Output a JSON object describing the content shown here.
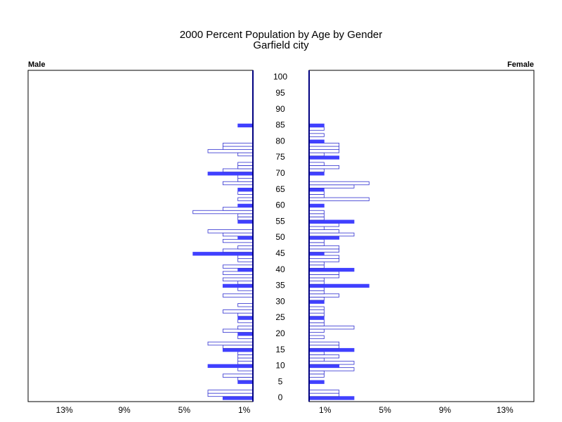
{
  "chart_data": {
    "type": "pyramid",
    "title": "2000 Percent Population by Age by Gender",
    "subtitle": "Garfield city",
    "y": [
      0,
      1,
      2,
      3,
      4,
      5,
      6,
      7,
      8,
      9,
      10,
      11,
      12,
      13,
      14,
      15,
      16,
      17,
      18,
      19,
      20,
      21,
      22,
      23,
      24,
      25,
      26,
      27,
      28,
      29,
      30,
      31,
      32,
      33,
      34,
      35,
      36,
      37,
      38,
      39,
      40,
      41,
      42,
      43,
      44,
      45,
      46,
      47,
      48,
      49,
      50,
      51,
      52,
      53,
      54,
      55,
      56,
      57,
      58,
      59,
      60,
      61,
      62,
      63,
      64,
      65,
      66,
      67,
      68,
      69,
      70,
      71,
      72,
      73,
      74,
      75,
      76,
      77,
      78,
      79,
      80,
      81,
      82,
      83,
      84,
      85,
      86,
      87,
      88,
      89,
      90,
      91,
      92,
      93,
      94,
      95,
      96,
      97,
      98,
      99,
      100
    ],
    "ylim": [
      -1.1,
      102.2
    ],
    "yticks": [
      0,
      5,
      10,
      15,
      20,
      25,
      30,
      35,
      40,
      45,
      50,
      55,
      60,
      65,
      70,
      75,
      80,
      85,
      90,
      95,
      100
    ],
    "xlim": [
      0,
      15
    ],
    "filled_every": 5,
    "fill_color": "#4040ff",
    "outline_color": "#3030d0",
    "axis_color": "#000080",
    "series": [
      {
        "name": "Male",
        "side": "left",
        "values": [
          2,
          3,
          3,
          0,
          0,
          1,
          1,
          2,
          0,
          1,
          3,
          1,
          1,
          1,
          1,
          2,
          2,
          3,
          0,
          1,
          1,
          2,
          1,
          0,
          1,
          1,
          1,
          2,
          0,
          1,
          0,
          0,
          2,
          0,
          1,
          2,
          1,
          2,
          0,
          2,
          1,
          2,
          0,
          1,
          1,
          4,
          2,
          1,
          0,
          2,
          1,
          2,
          3,
          0,
          0,
          1,
          1,
          1,
          4,
          2,
          1,
          0,
          1,
          0,
          1,
          1,
          0,
          2,
          1,
          1,
          3,
          2,
          1,
          1,
          0,
          0,
          1,
          3,
          2,
          2,
          0,
          0,
          0,
          0,
          0,
          1,
          0,
          0,
          0,
          0,
          0,
          0,
          0,
          0,
          0,
          0,
          0,
          0,
          0,
          0,
          0
        ],
        "xticks": [
          {
            "value": 13,
            "label": "13%"
          },
          {
            "value": 9,
            "label": "9%"
          },
          {
            "value": 5,
            "label": "5%"
          },
          {
            "value": 1,
            "label": "1%"
          }
        ]
      },
      {
        "name": "Female",
        "side": "right",
        "values": [
          3,
          2,
          2,
          0,
          0,
          1,
          0,
          1,
          1,
          3,
          2,
          3,
          1,
          2,
          1,
          3,
          2,
          2,
          0,
          1,
          0,
          1,
          3,
          1,
          1,
          1,
          1,
          1,
          1,
          0,
          1,
          1,
          2,
          1,
          1,
          4,
          1,
          1,
          2,
          2,
          3,
          1,
          1,
          2,
          2,
          1,
          2,
          2,
          1,
          1,
          2,
          3,
          2,
          1,
          2,
          3,
          1,
          1,
          1,
          0,
          1,
          0,
          4,
          1,
          1,
          1,
          3,
          4,
          0,
          0,
          1,
          1,
          2,
          1,
          0,
          2,
          1,
          2,
          2,
          2,
          1,
          0,
          1,
          0,
          1,
          1,
          0,
          0,
          0,
          0,
          0,
          0,
          0,
          0,
          0,
          0,
          0,
          0,
          0,
          0,
          0
        ],
        "xticks": [
          {
            "value": 1,
            "label": "1%"
          },
          {
            "value": 5,
            "label": "5%"
          },
          {
            "value": 9,
            "label": "9%"
          },
          {
            "value": 13,
            "label": "13%"
          }
        ]
      }
    ]
  }
}
